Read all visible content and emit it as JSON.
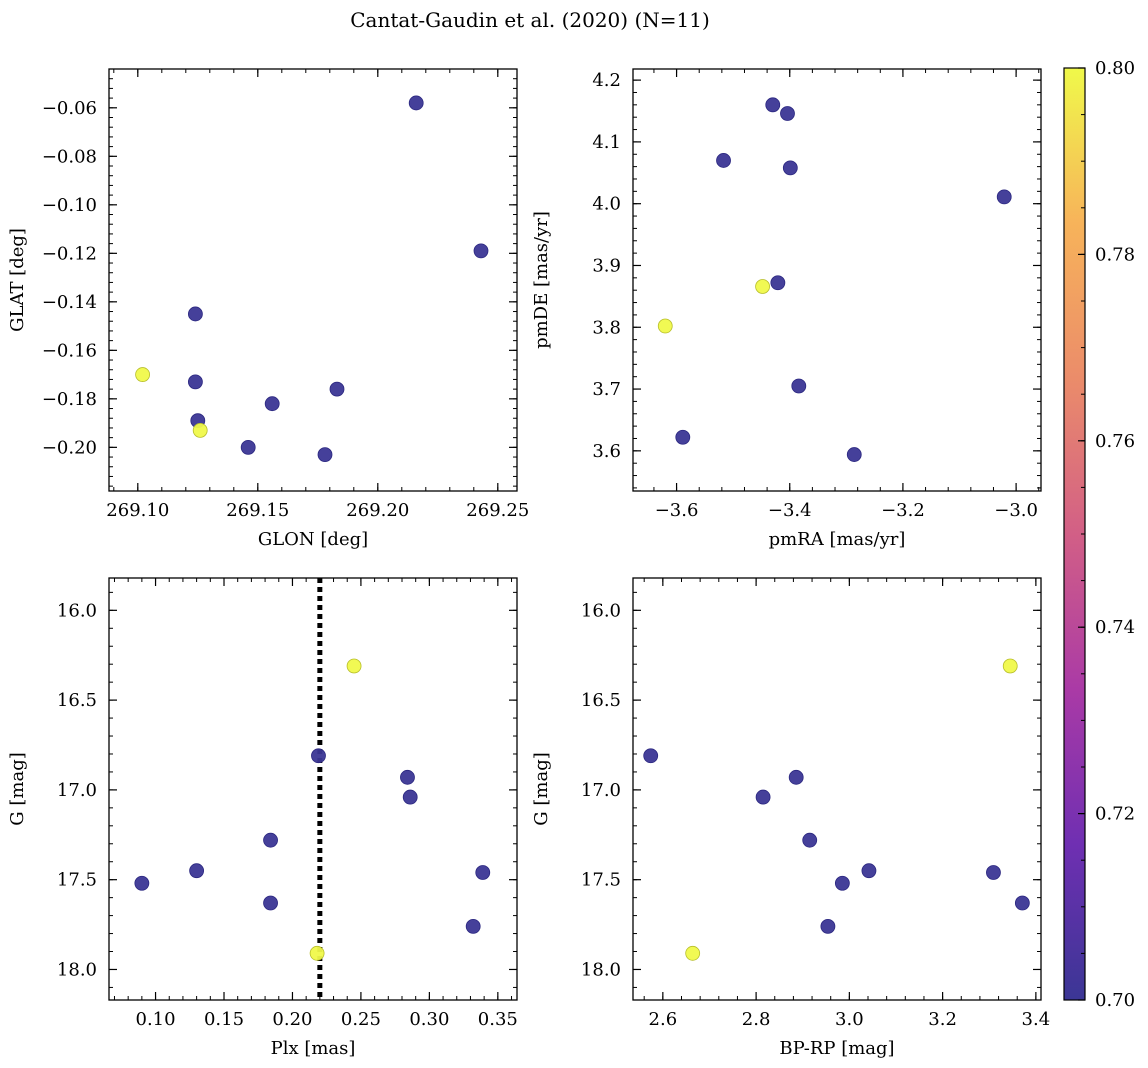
{
  "title": "Cantat-Gaudin et al. (2020) (N=11)",
  "colors": {
    "low": "#3b3695",
    "high": "#f0f94a",
    "edge_low": "#2b2780",
    "edge_high": "#b7be2a",
    "axis": "#000000",
    "vline": "#000000"
  },
  "colorbar": {
    "vmin": 0.7,
    "vmax": 0.8,
    "ticks": [
      "0.70",
      "0.72",
      "0.74",
      "0.76",
      "0.78",
      "0.80"
    ],
    "stops": [
      "#3b3695",
      "#6f2fb2",
      "#aa3aa6",
      "#d25f86",
      "#eb8c6a",
      "#f7b35a",
      "#f0f94a"
    ]
  },
  "chart_data": [
    {
      "type": "scatter",
      "id": "glon-glat",
      "xlabel": "GLON [deg]",
      "ylabel": "GLAT [deg]",
      "xlim": [
        269.088,
        269.258
      ],
      "ylim": [
        -0.218,
        -0.044
      ],
      "xticks": [
        "269.10",
        "269.15",
        "269.20",
        "269.25"
      ],
      "yticks": [
        "−0.06",
        "−0.08",
        "−0.10",
        "−0.12",
        "−0.14",
        "−0.16",
        "−0.18",
        "−0.20"
      ],
      "points": [
        {
          "x": 269.216,
          "y": -0.058,
          "c": 0.7
        },
        {
          "x": 269.243,
          "y": -0.119,
          "c": 0.7
        },
        {
          "x": 269.124,
          "y": -0.145,
          "c": 0.7
        },
        {
          "x": 269.124,
          "y": -0.173,
          "c": 0.7
        },
        {
          "x": 269.183,
          "y": -0.176,
          "c": 0.7
        },
        {
          "x": 269.156,
          "y": -0.182,
          "c": 0.7
        },
        {
          "x": 269.125,
          "y": -0.189,
          "c": 0.7
        },
        {
          "x": 269.146,
          "y": -0.2,
          "c": 0.7
        },
        {
          "x": 269.178,
          "y": -0.203,
          "c": 0.7
        },
        {
          "x": 269.102,
          "y": -0.17,
          "c": 0.8
        },
        {
          "x": 269.126,
          "y": -0.193,
          "c": 0.8
        }
      ]
    },
    {
      "type": "scatter",
      "id": "pmra-pmde",
      "xlabel": "pmRA [mas/yr]",
      "ylabel": "pmDE [mas/yr]",
      "xlim": [
        -3.677,
        -2.956
      ],
      "ylim": [
        3.535,
        4.218
      ],
      "xticks": [
        "−3.6",
        "−3.4",
        "−3.2",
        "−3.0"
      ],
      "yticks": [
        "4.2",
        "4.1",
        "4.0",
        "3.9",
        "3.8",
        "3.7",
        "3.6"
      ],
      "points": [
        {
          "x": -3.43,
          "y": 4.16,
          "c": 0.7
        },
        {
          "x": -3.404,
          "y": 4.146,
          "c": 0.7
        },
        {
          "x": -3.517,
          "y": 4.07,
          "c": 0.7
        },
        {
          "x": -3.399,
          "y": 4.058,
          "c": 0.7
        },
        {
          "x": -3.021,
          "y": 4.011,
          "c": 0.7
        },
        {
          "x": -3.421,
          "y": 3.872,
          "c": 0.7
        },
        {
          "x": -3.384,
          "y": 3.705,
          "c": 0.7
        },
        {
          "x": -3.589,
          "y": 3.622,
          "c": 0.7
        },
        {
          "x": -3.286,
          "y": 3.594,
          "c": 0.7
        },
        {
          "x": -3.448,
          "y": 3.866,
          "c": 0.8
        },
        {
          "x": -3.62,
          "y": 3.802,
          "c": 0.8
        }
      ]
    },
    {
      "type": "scatter",
      "id": "plx-g",
      "xlabel": "Plx [mas]",
      "ylabel": "G [mag]",
      "xlim": [
        0.066,
        0.364
      ],
      "ylim": [
        18.17,
        15.82
      ],
      "xticks": [
        "0.10",
        "0.15",
        "0.20",
        "0.25",
        "0.30",
        "0.35"
      ],
      "yticks": [
        "16.0",
        "16.5",
        "17.0",
        "17.5",
        "18.0"
      ],
      "vline": 0.22,
      "points": [
        {
          "x": 0.219,
          "y": 16.81,
          "c": 0.7
        },
        {
          "x": 0.284,
          "y": 16.93,
          "c": 0.7
        },
        {
          "x": 0.286,
          "y": 17.04,
          "c": 0.7
        },
        {
          "x": 0.184,
          "y": 17.28,
          "c": 0.7
        },
        {
          "x": 0.13,
          "y": 17.45,
          "c": 0.7
        },
        {
          "x": 0.339,
          "y": 17.46,
          "c": 0.7
        },
        {
          "x": 0.09,
          "y": 17.52,
          "c": 0.7
        },
        {
          "x": 0.184,
          "y": 17.63,
          "c": 0.7
        },
        {
          "x": 0.332,
          "y": 17.76,
          "c": 0.7
        },
        {
          "x": 0.245,
          "y": 16.31,
          "c": 0.8
        },
        {
          "x": 0.218,
          "y": 17.91,
          "c": 0.8
        }
      ]
    },
    {
      "type": "scatter",
      "id": "bprp-g",
      "xlabel": "BP-RP [mag]",
      "ylabel": "G [mag]",
      "xlim": [
        2.536,
        3.411
      ],
      "ylim": [
        18.17,
        15.82
      ],
      "xticks": [
        "2.6",
        "2.8",
        "3.0",
        "3.2",
        "3.4"
      ],
      "yticks": [
        "16.0",
        "16.5",
        "17.0",
        "17.5",
        "18.0"
      ],
      "points": [
        {
          "x": 2.574,
          "y": 16.81,
          "c": 0.7
        },
        {
          "x": 2.886,
          "y": 16.93,
          "c": 0.7
        },
        {
          "x": 2.815,
          "y": 17.04,
          "c": 0.7
        },
        {
          "x": 2.915,
          "y": 17.28,
          "c": 0.7
        },
        {
          "x": 3.042,
          "y": 17.45,
          "c": 0.7
        },
        {
          "x": 3.309,
          "y": 17.46,
          "c": 0.7
        },
        {
          "x": 2.985,
          "y": 17.52,
          "c": 0.7
        },
        {
          "x": 3.371,
          "y": 17.63,
          "c": 0.7
        },
        {
          "x": 2.954,
          "y": 17.76,
          "c": 0.7
        },
        {
          "x": 3.345,
          "y": 16.31,
          "c": 0.8
        },
        {
          "x": 2.664,
          "y": 17.91,
          "c": 0.8
        }
      ]
    }
  ]
}
